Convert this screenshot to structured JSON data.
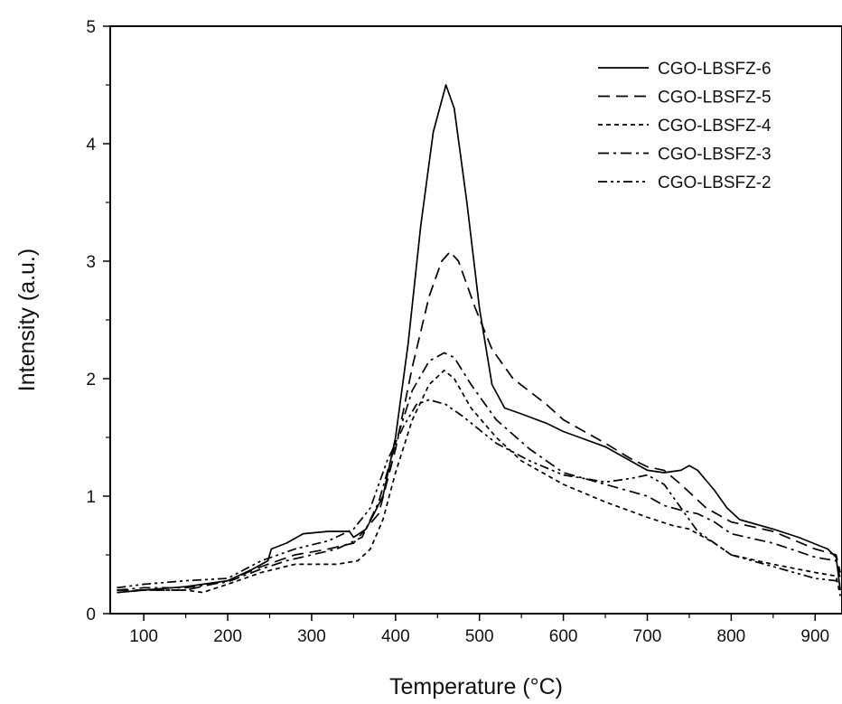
{
  "chart_data": {
    "type": "line",
    "xlabel": "Temperature (°C)",
    "ylabel": "Intensity (a.u.)",
    "xlim": [
      60,
      932
    ],
    "ylim": [
      0,
      5
    ],
    "xticks": [
      100,
      200,
      300,
      400,
      500,
      600,
      700,
      800,
      900
    ],
    "yticks": [
      0,
      1,
      2,
      3,
      4,
      5
    ],
    "grid": false,
    "legend_position": "top-right",
    "series": [
      {
        "name": "CGO-LBSFZ-6",
        "dash": "solid",
        "points": [
          [
            68,
            0.18
          ],
          [
            100,
            0.2
          ],
          [
            150,
            0.23
          ],
          [
            200,
            0.28
          ],
          [
            230,
            0.38
          ],
          [
            248,
            0.45
          ],
          [
            252,
            0.55
          ],
          [
            270,
            0.6
          ],
          [
            290,
            0.68
          ],
          [
            320,
            0.7
          ],
          [
            345,
            0.7
          ],
          [
            350,
            0.65
          ],
          [
            365,
            0.72
          ],
          [
            385,
            1.0
          ],
          [
            400,
            1.5
          ],
          [
            415,
            2.3
          ],
          [
            430,
            3.3
          ],
          [
            445,
            4.1
          ],
          [
            460,
            4.5
          ],
          [
            470,
            4.3
          ],
          [
            485,
            3.5
          ],
          [
            500,
            2.6
          ],
          [
            515,
            1.95
          ],
          [
            530,
            1.75
          ],
          [
            550,
            1.7
          ],
          [
            580,
            1.62
          ],
          [
            600,
            1.55
          ],
          [
            650,
            1.42
          ],
          [
            700,
            1.22
          ],
          [
            720,
            1.2
          ],
          [
            740,
            1.22
          ],
          [
            750,
            1.26
          ],
          [
            760,
            1.22
          ],
          [
            780,
            1.05
          ],
          [
            795,
            0.9
          ],
          [
            810,
            0.8
          ],
          [
            850,
            0.72
          ],
          [
            880,
            0.65
          ],
          [
            915,
            0.55
          ],
          [
            925,
            0.48
          ],
          [
            930,
            0.2
          ]
        ]
      },
      {
        "name": "CGO-LBSFZ-5",
        "dash": "long-dash",
        "points": [
          [
            68,
            0.2
          ],
          [
            100,
            0.2
          ],
          [
            150,
            0.2
          ],
          [
            200,
            0.28
          ],
          [
            240,
            0.4
          ],
          [
            280,
            0.5
          ],
          [
            320,
            0.55
          ],
          [
            350,
            0.6
          ],
          [
            380,
            0.85
          ],
          [
            400,
            1.4
          ],
          [
            420,
            2.1
          ],
          [
            440,
            2.7
          ],
          [
            455,
            3.0
          ],
          [
            465,
            3.08
          ],
          [
            475,
            3.0
          ],
          [
            495,
            2.6
          ],
          [
            515,
            2.25
          ],
          [
            540,
            2.0
          ],
          [
            580,
            1.78
          ],
          [
            600,
            1.65
          ],
          [
            650,
            1.45
          ],
          [
            680,
            1.32
          ],
          [
            700,
            1.25
          ],
          [
            720,
            1.22
          ],
          [
            740,
            1.1
          ],
          [
            770,
            0.9
          ],
          [
            800,
            0.78
          ],
          [
            850,
            0.7
          ],
          [
            900,
            0.55
          ],
          [
            925,
            0.5
          ],
          [
            930,
            0.35
          ]
        ]
      },
      {
        "name": "CGO-LBSFZ-4",
        "dash": "short-dash",
        "points": [
          [
            68,
            0.18
          ],
          [
            100,
            0.2
          ],
          [
            150,
            0.2
          ],
          [
            170,
            0.18
          ],
          [
            200,
            0.25
          ],
          [
            240,
            0.35
          ],
          [
            280,
            0.42
          ],
          [
            330,
            0.42
          ],
          [
            355,
            0.45
          ],
          [
            370,
            0.55
          ],
          [
            385,
            0.8
          ],
          [
            400,
            1.2
          ],
          [
            420,
            1.65
          ],
          [
            440,
            1.95
          ],
          [
            458,
            2.07
          ],
          [
            470,
            2.0
          ],
          [
            490,
            1.75
          ],
          [
            520,
            1.5
          ],
          [
            550,
            1.3
          ],
          [
            600,
            1.1
          ],
          [
            650,
            0.95
          ],
          [
            700,
            0.82
          ],
          [
            730,
            0.75
          ],
          [
            750,
            0.72
          ],
          [
            780,
            0.6
          ],
          [
            800,
            0.5
          ],
          [
            850,
            0.42
          ],
          [
            900,
            0.35
          ],
          [
            925,
            0.32
          ],
          [
            930,
            0.15
          ]
        ]
      },
      {
        "name": "CGO-LBSFZ-3",
        "dash": "dash-dot",
        "points": [
          [
            68,
            0.2
          ],
          [
            100,
            0.22
          ],
          [
            150,
            0.22
          ],
          [
            200,
            0.27
          ],
          [
            240,
            0.38
          ],
          [
            270,
            0.45
          ],
          [
            300,
            0.5
          ],
          [
            330,
            0.55
          ],
          [
            360,
            0.65
          ],
          [
            380,
            0.95
          ],
          [
            400,
            1.45
          ],
          [
            420,
            1.9
          ],
          [
            440,
            2.15
          ],
          [
            458,
            2.22
          ],
          [
            470,
            2.18
          ],
          [
            490,
            1.95
          ],
          [
            520,
            1.65
          ],
          [
            560,
            1.4
          ],
          [
            600,
            1.2
          ],
          [
            650,
            1.1
          ],
          [
            700,
            1.0
          ],
          [
            720,
            0.92
          ],
          [
            740,
            0.88
          ],
          [
            760,
            0.85
          ],
          [
            780,
            0.78
          ],
          [
            800,
            0.68
          ],
          [
            850,
            0.6
          ],
          [
            900,
            0.48
          ],
          [
            925,
            0.45
          ],
          [
            930,
            0.3
          ]
        ]
      },
      {
        "name": "CGO-LBSFZ-2",
        "dash": "dash-dot-dot",
        "points": [
          [
            68,
            0.22
          ],
          [
            100,
            0.25
          ],
          [
            150,
            0.28
          ],
          [
            200,
            0.3
          ],
          [
            240,
            0.45
          ],
          [
            280,
            0.55
          ],
          [
            320,
            0.62
          ],
          [
            350,
            0.72
          ],
          [
            370,
            0.9
          ],
          [
            390,
            1.3
          ],
          [
            410,
            1.6
          ],
          [
            425,
            1.78
          ],
          [
            440,
            1.82
          ],
          [
            460,
            1.78
          ],
          [
            480,
            1.68
          ],
          [
            520,
            1.45
          ],
          [
            560,
            1.3
          ],
          [
            600,
            1.18
          ],
          [
            650,
            1.12
          ],
          [
            680,
            1.15
          ],
          [
            700,
            1.18
          ],
          [
            720,
            1.1
          ],
          [
            740,
            0.9
          ],
          [
            760,
            0.7
          ],
          [
            780,
            0.6
          ],
          [
            800,
            0.5
          ],
          [
            850,
            0.4
          ],
          [
            900,
            0.3
          ],
          [
            925,
            0.28
          ],
          [
            930,
            0.25
          ]
        ]
      }
    ]
  }
}
